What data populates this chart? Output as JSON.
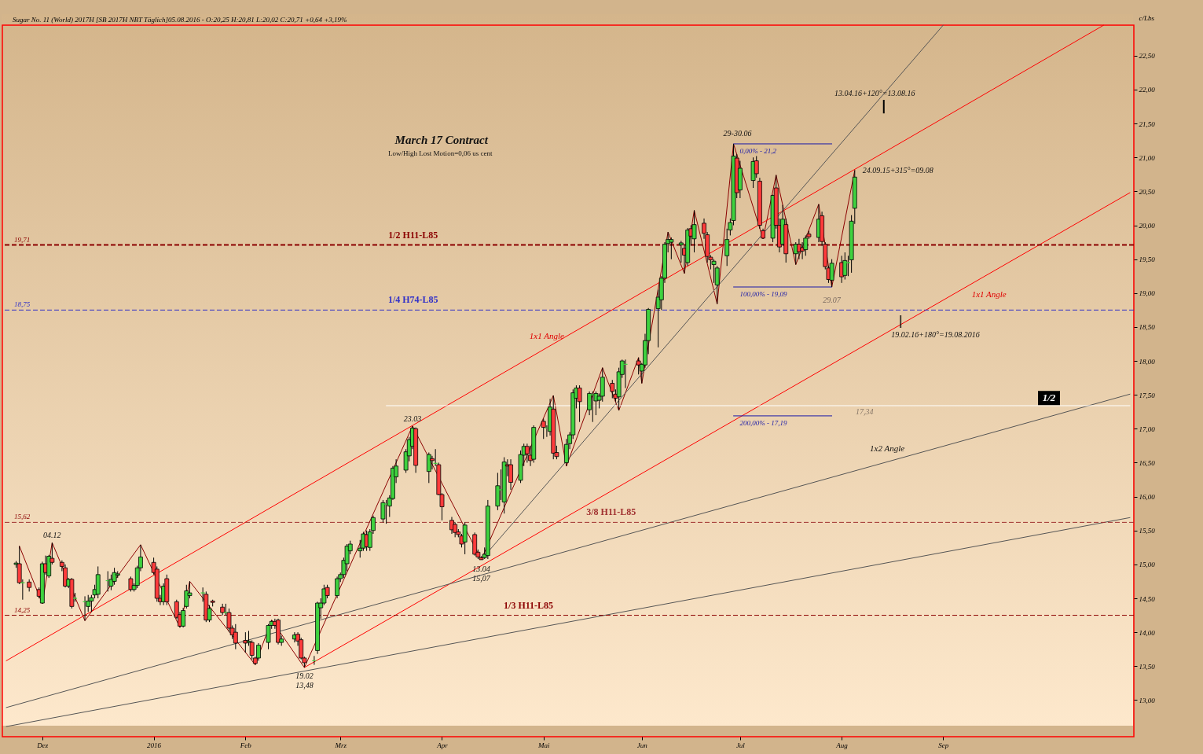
{
  "chart_data": {
    "colors": [
      "#3fd23f",
      "#ff3b3b",
      "#3fd23f",
      "#ff3b3b",
      "#ff3b3b",
      "#3fd23f",
      "#ff3b3b",
      "#3fd23f",
      "#ff3b3b",
      "#ff3b3b",
      "#ff3b3b",
      "#3fd23f",
      "#ff3b3b",
      "#3fd23f",
      "#3fd23f",
      "#3fd23f",
      "#3fd23f",
      "#3fd23f",
      "#3fd23f",
      "#3fd23f",
      "#3fd23f",
      "#3fd23f",
      "#3fd23f",
      "#ff3b3b",
      "#3fd23f",
      "#3fd23f",
      "#3fd23f",
      "#ff3b3b",
      "#ff3b3b",
      "#ff3b3b",
      "#3fd23f",
      "#ff3b3b",
      "#ff3b3b",
      "#ff3b3b",
      "#3fd23f",
      "#3fd23f",
      "#3fd23f",
      "#3fd23f",
      "#ff3b3b",
      "#3fd23f",
      "#ff3b3b",
      "#ff3b3b",
      "#3fd23f",
      "#ff3b3b",
      "#ff3b3b",
      "#ff3b3b",
      "#ff3b3b",
      "#3fd23f",
      "#ff3b3b",
      "#ff3b3b",
      "#3fd23f",
      "#3fd23f",
      "#3fd23f",
      "#ff3b3b",
      "#ff3b3b",
      "#3fd23f",
      "#3fd23f",
      "#ff3b3b",
      "#ff3b3b",
      "#ff3b3b",
      "#3fd23f",
      "#3fd23f",
      "#3fd23f",
      "#3fd23f",
      "#ff3b3b",
      "#3fd23f",
      "#3fd23f",
      "#3fd23f",
      "#3fd23f",
      "#3fd23f",
      "#3fd23f",
      "#3fd23f",
      "#ff3b3b",
      "#3fd23f",
      "#3fd23f",
      "#3fd23f",
      "#3fd23f",
      "#3fd23f",
      "#3fd23f",
      "#3fd23f",
      "#3fd23f",
      "#3fd23f",
      "#3fd23f",
      "#ff3b3b",
      "#3fd23f",
      "#ff3b3b",
      "#3fd23f",
      "#ff3b3b",
      "#ff3b3b",
      "#ff3b3b",
      "#ff3b3b",
      "#ff3b3b",
      "#ff3b3b",
      "#3fd23f",
      "#ff3b3b",
      "#ff3b3b",
      "#ff3b3b",
      "#3fd23f",
      "#3fd23f",
      "#3fd23f",
      "#3fd23f",
      "#3fd23f",
      "#ff3b3b",
      "#ff3b3b",
      "#3fd23f",
      "#3fd23f",
      "#ff3b3b",
      "#ff3b3b",
      "#3fd23f",
      "#ff3b3b",
      "#3fd23f",
      "#3fd23f",
      "#ff3b3b",
      "#ff3b3b",
      "#3fd23f",
      "#3fd23f",
      "#3fd23f",
      "#3fd23f",
      "#ff3b3b",
      "#3fd23f",
      "#3fd23f",
      "#3fd23f",
      "#3fd23f",
      "#3fd23f",
      "#ff3b3b",
      "#ff3b3b",
      "#3fd23f",
      "#3fd23f",
      "#3fd23f",
      "#ff3b3b",
      "#3fd23f",
      "#3fd23f",
      "#3fd23f",
      "#3fd23f",
      "#3fd23f",
      "#3fd23f",
      "#3fd23f",
      "#3fd23f",
      "#3fd23f",
      "#ff3b3b",
      "#3fd23f",
      "#ff3b3b",
      "#3fd23f",
      "#ff3b3b",
      "#ff3b3b",
      "#ff3b3b",
      "#3fd23f",
      "#3fd23f",
      "#3fd23f",
      "#3fd23f",
      "#3fd23f",
      "#ff3b3b",
      "#3fd23f",
      "#3fd23f",
      "#ff3b3b",
      "#ff3b3b",
      "#ff3b3b",
      "#3fd23f",
      "#ff3b3b",
      "#ff3b3b",
      "#3fd23f",
      "#ff3b3b",
      "#3fd23f",
      "#ff3b3b",
      "#ff3b3b",
      "#3fd23f",
      "#ff3b3b",
      "#3fd23f",
      "#ff3b3b",
      "#ff3b3b",
      "#ff3b3b",
      "#3fd23f",
      "#ff3b3b",
      "#3fd23f",
      "#3fd23f",
      "#3fd23f",
      "#3fd23f"
    ],
    "type": "candlestick",
    "title": "Sugar No. 11 (World) 2017H [SB 2017H NBT  Täglich]05.08.2016 - O:20,25 H:20,81 L:20,02 C:20,71 +0,64 +3,19%",
    "ylabel": "c/Lbs",
    "x": [
      "2015-11-23",
      "2015-11-24",
      "2015-11-25",
      "2015-11-27",
      "2015-11-30",
      "2015-12-01",
      "2015-12-02",
      "2015-12-03",
      "2015-12-04",
      "2015-12-07",
      "2015-12-08",
      "2015-12-09",
      "2015-12-10",
      "2015-12-11",
      "2015-12-14",
      "2015-12-15",
      "2015-12-16",
      "2015-12-17",
      "2015-12-18",
      "2015-12-21",
      "2015-12-22",
      "2015-12-23",
      "2015-12-24",
      "2015-12-28",
      "2015-12-29",
      "2015-12-30",
      "2015-12-31",
      "2016-01-04",
      "2016-01-05",
      "2016-01-06",
      "2016-01-07",
      "2016-01-08",
      "2016-01-11",
      "2016-01-12",
      "2016-01-13",
      "2016-01-14",
      "2016-01-15",
      "2016-01-19",
      "2016-01-20",
      "2016-01-21",
      "2016-01-22",
      "2016-01-25",
      "2016-01-26",
      "2016-01-27",
      "2016-01-28",
      "2016-01-29",
      "2016-02-01",
      "2016-02-02",
      "2016-02-03",
      "2016-02-04",
      "2016-02-05",
      "2016-02-08",
      "2016-02-09",
      "2016-02-10",
      "2016-02-11",
      "2016-02-12",
      "2016-02-16",
      "2016-02-17",
      "2016-02-18",
      "2016-02-19",
      "2016-02-22",
      "2016-02-23",
      "2016-02-24",
      "2016-02-25",
      "2016-02-26",
      "2016-02-29",
      "2016-03-01",
      "2016-03-02",
      "2016-03-03",
      "2016-03-04",
      "2016-03-07",
      "2016-03-08",
      "2016-03-09",
      "2016-03-10",
      "2016-03-11",
      "2016-03-14",
      "2016-03-15",
      "2016-03-16",
      "2016-03-17",
      "2016-03-18",
      "2016-03-21",
      "2016-03-22",
      "2016-03-23",
      "2016-03-24",
      "2016-03-28",
      "2016-03-29",
      "2016-03-30",
      "2016-03-31",
      "2016-04-01",
      "2016-04-04",
      "2016-04-05",
      "2016-04-06",
      "2016-04-07",
      "2016-04-08",
      "2016-04-11",
      "2016-04-12",
      "2016-04-13",
      "2016-04-14",
      "2016-04-15",
      "2016-04-18",
      "2016-04-19",
      "2016-04-20",
      "2016-04-21",
      "2016-04-22",
      "2016-04-25",
      "2016-04-26",
      "2016-04-27",
      "2016-04-28",
      "2016-04-29",
      "2016-05-02",
      "2016-05-03",
      "2016-05-04",
      "2016-05-05",
      "2016-05-06",
      "2016-05-09",
      "2016-05-10",
      "2016-05-11",
      "2016-05-12",
      "2016-05-13",
      "2016-05-16",
      "2016-05-17",
      "2016-05-18",
      "2016-05-19",
      "2016-05-20",
      "2016-05-23",
      "2016-05-24",
      "2016-05-25",
      "2016-05-26",
      "2016-05-27",
      "2016-05-31",
      "2016-06-01",
      "2016-06-02",
      "2016-06-03",
      "2016-06-06",
      "2016-06-07",
      "2016-06-08",
      "2016-06-09",
      "2016-06-10",
      "2016-06-13",
      "2016-06-14",
      "2016-06-15",
      "2016-06-16",
      "2016-06-17",
      "2016-06-20",
      "2016-06-21",
      "2016-06-22",
      "2016-06-23",
      "2016-06-24",
      "2016-06-27",
      "2016-06-28",
      "2016-06-29",
      "2016-06-30",
      "2016-07-01",
      "2016-07-05",
      "2016-07-06",
      "2016-07-07",
      "2016-07-08",
      "2016-07-11",
      "2016-07-12",
      "2016-07-13",
      "2016-07-14",
      "2016-07-15",
      "2016-07-18",
      "2016-07-19",
      "2016-07-20",
      "2016-07-21",
      "2016-07-22",
      "2016-07-25",
      "2016-07-26",
      "2016-07-27",
      "2016-07-28",
      "2016-07-29",
      "2016-08-01",
      "2016-08-02",
      "2016-08-03",
      "2016-08-04",
      "2016-08-05"
    ],
    "ohlc": [
      [
        15.0,
        15.05,
        14.95,
        15.02
      ],
      [
        15.01,
        15.27,
        14.71,
        14.73
      ],
      [
        14.73,
        14.78,
        14.48,
        14.73
      ],
      [
        14.74,
        14.78,
        14.6,
        14.66
      ],
      [
        14.63,
        14.66,
        14.5,
        14.53
      ],
      [
        14.43,
        15.04,
        14.42,
        15.01
      ],
      [
        15.01,
        15.13,
        14.85,
        14.88
      ],
      [
        14.83,
        15.14,
        14.8,
        15.12
      ],
      [
        15.09,
        15.32,
        15.0,
        15.03
      ],
      [
        15.03,
        15.06,
        14.9,
        14.97
      ],
      [
        14.95,
        15.0,
        14.66,
        14.68
      ],
      [
        14.68,
        14.8,
        14.65,
        14.78
      ],
      [
        14.78,
        14.8,
        14.35,
        14.38
      ],
      [
        14.5,
        14.58,
        14.45,
        14.5
      ],
      [
        14.45,
        14.53,
        14.17,
        14.45
      ],
      [
        14.38,
        14.55,
        14.3,
        14.46
      ],
      [
        14.46,
        14.55,
        14.3,
        14.51
      ],
      [
        14.55,
        14.7,
        14.5,
        14.63
      ],
      [
        14.56,
        14.97,
        14.5,
        14.85
      ],
      [
        14.76,
        14.9,
        14.6,
        14.76
      ],
      [
        14.68,
        14.85,
        14.62,
        14.78
      ],
      [
        14.75,
        14.95,
        14.7,
        14.88
      ],
      [
        14.84,
        14.9,
        14.8,
        14.86
      ],
      [
        14.79,
        14.82,
        14.6,
        14.63
      ],
      [
        14.63,
        14.72,
        14.6,
        14.69
      ],
      [
        14.69,
        14.98,
        14.65,
        14.95
      ],
      [
        14.95,
        15.29,
        14.9,
        15.11
      ],
      [
        15.03,
        15.1,
        14.85,
        14.88
      ],
      [
        14.93,
        14.97,
        14.45,
        14.5
      ],
      [
        14.5,
        14.55,
        14.4,
        14.45
      ],
      [
        14.45,
        14.72,
        14.4,
        14.68
      ],
      [
        14.79,
        14.85,
        14.4,
        14.45
      ],
      [
        14.45,
        14.48,
        14.2,
        14.22
      ],
      [
        14.26,
        14.3,
        14.07,
        14.09
      ],
      [
        14.09,
        14.36,
        14.07,
        14.32
      ],
      [
        14.38,
        14.7,
        14.35,
        14.61
      ],
      [
        14.54,
        14.75,
        14.5,
        14.58
      ],
      [
        14.58,
        14.66,
        14.45,
        14.58
      ],
      [
        14.56,
        14.6,
        14.15,
        14.18
      ],
      [
        14.18,
        14.4,
        14.15,
        14.35
      ],
      [
        14.46,
        14.48,
        14.38,
        14.44
      ],
      [
        14.37,
        14.42,
        14.25,
        14.29
      ],
      [
        14.29,
        14.42,
        14.25,
        14.29
      ],
      [
        14.29,
        14.35,
        14.0,
        14.06
      ],
      [
        14.06,
        14.1,
        13.9,
        13.96
      ],
      [
        14.0,
        14.12,
        13.75,
        13.84
      ],
      [
        13.88,
        14.0,
        13.7,
        13.84
      ],
      [
        13.85,
        14.02,
        13.8,
        13.87
      ],
      [
        13.85,
        13.88,
        13.6,
        13.66
      ],
      [
        13.62,
        13.64,
        13.52,
        13.54
      ],
      [
        13.62,
        13.84,
        13.58,
        13.81
      ],
      [
        13.85,
        14.12,
        13.75,
        14.1
      ],
      [
        14.1,
        14.18,
        14.05,
        14.16
      ],
      [
        14.16,
        14.2,
        14.05,
        14.1
      ],
      [
        14.18,
        14.2,
        13.82,
        13.85
      ],
      [
        13.85,
        13.95,
        13.8,
        13.9
      ],
      [
        13.9,
        14.0,
        13.85,
        13.96
      ],
      [
        13.97,
        14.0,
        13.8,
        13.87
      ],
      [
        13.89,
        13.92,
        13.6,
        13.62
      ],
      [
        13.62,
        13.64,
        13.48,
        13.55
      ],
      [
        13.58,
        13.65,
        13.52,
        13.58
      ],
      [
        13.73,
        14.45,
        13.68,
        14.43
      ],
      [
        14.36,
        14.5,
        14.2,
        14.43
      ],
      [
        14.43,
        14.7,
        14.4,
        14.64
      ],
      [
        14.66,
        14.7,
        14.5,
        14.54
      ],
      [
        14.54,
        14.82,
        14.5,
        14.79
      ],
      [
        14.79,
        14.88,
        14.74,
        14.85
      ],
      [
        14.85,
        15.1,
        14.8,
        15.06
      ],
      [
        15.01,
        15.3,
        14.9,
        15.27
      ],
      [
        15.2,
        15.35,
        15.15,
        15.3
      ],
      [
        15.2,
        15.36,
        15.1,
        15.24
      ],
      [
        15.24,
        15.48,
        15.2,
        15.45
      ],
      [
        15.44,
        15.5,
        15.2,
        15.26
      ],
      [
        15.25,
        15.52,
        15.2,
        15.48
      ],
      [
        15.5,
        15.72,
        15.45,
        15.69
      ],
      [
        15.67,
        15.95,
        15.62,
        15.91
      ],
      [
        15.89,
        15.95,
        15.6,
        15.89
      ],
      [
        15.86,
        16.02,
        15.7,
        15.98
      ],
      [
        15.97,
        16.45,
        15.95,
        16.42
      ],
      [
        16.29,
        16.55,
        16.2,
        16.45
      ],
      [
        16.39,
        16.7,
        16.35,
        16.66
      ],
      [
        16.6,
        16.88,
        16.52,
        16.84
      ],
      [
        16.74,
        17.04,
        16.7,
        17.01
      ],
      [
        17.0,
        17.02,
        16.35,
        16.46
      ],
      [
        16.37,
        16.65,
        16.2,
        16.62
      ],
      [
        16.56,
        16.6,
        16.4,
        16.53
      ],
      [
        16.49,
        16.7,
        16.45,
        16.49
      ],
      [
        16.47,
        16.5,
        16.02,
        16.03
      ],
      [
        16.03,
        16.05,
        15.65,
        15.85
      ],
      [
        15.65,
        15.7,
        15.45,
        15.51
      ],
      [
        15.59,
        15.62,
        15.4,
        15.47
      ],
      [
        15.48,
        15.52,
        15.4,
        15.44
      ],
      [
        15.42,
        15.45,
        15.25,
        15.3
      ],
      [
        15.33,
        15.62,
        15.15,
        15.58
      ],
      [
        15.44,
        15.47,
        15.13,
        15.15
      ],
      [
        15.18,
        15.22,
        15.08,
        15.11
      ],
      [
        15.1,
        15.12,
        15.07,
        15.07
      ],
      [
        15.1,
        15.25,
        15.08,
        15.15
      ],
      [
        15.13,
        15.95,
        15.08,
        15.86
      ],
      [
        15.86,
        16.35,
        15.8,
        16.16
      ],
      [
        16.1,
        16.4,
        15.95,
        16.1
      ],
      [
        15.92,
        16.58,
        15.75,
        16.51
      ],
      [
        16.47,
        16.55,
        16.3,
        16.45
      ],
      [
        16.47,
        16.55,
        16.1,
        16.21
      ],
      [
        16.24,
        16.68,
        16.2,
        16.62
      ],
      [
        16.61,
        16.78,
        16.45,
        16.74
      ],
      [
        16.74,
        16.78,
        16.5,
        16.63
      ],
      [
        16.61,
        16.75,
        16.45,
        16.53
      ],
      [
        16.55,
        17.05,
        16.5,
        17.02
      ],
      [
        17.11,
        17.15,
        16.85,
        17.02
      ],
      [
        17.01,
        17.05,
        16.88,
        17.01
      ],
      [
        16.96,
        17.44,
        16.9,
        17.32
      ],
      [
        17.29,
        17.49,
        16.55,
        16.64
      ],
      [
        16.65,
        16.75,
        16.55,
        16.59
      ],
      [
        16.5,
        16.85,
        16.45,
        16.77
      ],
      [
        16.78,
        16.95,
        16.7,
        16.91
      ],
      [
        16.91,
        17.58,
        16.85,
        17.53
      ],
      [
        17.45,
        17.64,
        17.3,
        17.6
      ],
      [
        17.6,
        17.64,
        17.1,
        17.4
      ],
      [
        17.28,
        17.55,
        17.2,
        17.52
      ],
      [
        17.5,
        17.55,
        17.1,
        17.5
      ],
      [
        17.41,
        17.55,
        17.2,
        17.52
      ],
      [
        17.42,
        17.52,
        17.3,
        17.48
      ],
      [
        17.48,
        17.9,
        17.4,
        17.76
      ],
      [
        17.67,
        17.72,
        17.45,
        17.55
      ],
      [
        17.51,
        17.58,
        17.4,
        17.45
      ],
      [
        17.47,
        17.9,
        17.27,
        17.84
      ],
      [
        17.8,
        18.02,
        17.75,
        18.0
      ],
      [
        17.95,
        18.02,
        17.6,
        17.95
      ],
      [
        18.0,
        18.05,
        17.8,
        17.94
      ],
      [
        17.85,
        17.97,
        17.67,
        17.95
      ],
      [
        17.94,
        18.4,
        17.9,
        18.3
      ],
      [
        18.3,
        18.78,
        18.1,
        18.76
      ],
      [
        18.77,
        19.05,
        18.2,
        18.94
      ],
      [
        18.9,
        19.25,
        18.75,
        19.22
      ],
      [
        19.22,
        19.75,
        19.15,
        19.72
      ],
      [
        19.73,
        19.9,
        19.6,
        19.79
      ],
      [
        19.75,
        19.82,
        19.5,
        19.79
      ],
      [
        19.71,
        19.77,
        19.45,
        19.74
      ],
      [
        19.66,
        19.7,
        19.29,
        19.56
      ],
      [
        19.45,
        19.96,
        19.4,
        19.93
      ],
      [
        19.95,
        20.0,
        19.7,
        19.84
      ],
      [
        19.8,
        20.22,
        19.6,
        20.01
      ],
      [
        20.03,
        20.1,
        19.8,
        19.88
      ],
      [
        19.86,
        19.9,
        19.45,
        19.54
      ],
      [
        19.53,
        19.56,
        19.35,
        19.49
      ],
      [
        19.42,
        19.5,
        19.15,
        19.47
      ],
      [
        19.12,
        19.4,
        18.84,
        19.37
      ],
      [
        19.55,
        19.95,
        19.4,
        19.79
      ],
      [
        19.93,
        20.1,
        19.85,
        20.04
      ],
      [
        20.07,
        21.2,
        20.0,
        21.02
      ],
      [
        20.99,
        21.05,
        20.4,
        20.48
      ],
      [
        20.52,
        20.95,
        20.4,
        20.84
      ],
      [
        20.66,
        21.0,
        20.55,
        20.94
      ],
      [
        20.95,
        21.02,
        20.7,
        20.76
      ],
      [
        20.65,
        20.7,
        19.95,
        20.0
      ],
      [
        19.92,
        19.95,
        19.8,
        19.81
      ],
      [
        19.81,
        20.45,
        19.75,
        20.44
      ],
      [
        20.55,
        20.74,
        19.95,
        20.0
      ],
      [
        20.0,
        20.1,
        19.6,
        19.68
      ],
      [
        19.72,
        20.3,
        19.7,
        20.09
      ],
      [
        20.01,
        20.1,
        19.45,
        19.58
      ],
      [
        19.58,
        19.75,
        19.42,
        19.72
      ],
      [
        19.72,
        19.8,
        19.5,
        19.61
      ],
      [
        19.67,
        19.75,
        19.5,
        19.62
      ],
      [
        19.64,
        19.85,
        19.55,
        19.81
      ],
      [
        19.87,
        19.92,
        19.8,
        19.83
      ],
      [
        19.82,
        20.31,
        19.75,
        20.09
      ],
      [
        20.14,
        20.2,
        19.7,
        19.76
      ],
      [
        19.72,
        19.75,
        19.35,
        19.39
      ],
      [
        19.37,
        19.4,
        19.15,
        19.2
      ],
      [
        19.19,
        19.5,
        19.09,
        19.44
      ],
      [
        19.45,
        19.55,
        19.15,
        19.24
      ],
      [
        19.26,
        19.6,
        19.2,
        19.48
      ],
      [
        19.45,
        19.55,
        19.25,
        19.45
      ],
      [
        19.49,
        20.15,
        19.3,
        20.06
      ],
      [
        20.25,
        20.81,
        20.02,
        20.71
      ]
    ],
    "series": [
      {
        "type": "line",
        "color": "#8b0000",
        "x": [
          "2015-11-24",
          "2015-12-01",
          "2015-12-04",
          "2015-12-14",
          "2015-12-31",
          "2016-01-12",
          "2016-01-15",
          "2016-02-04",
          "2016-02-09",
          "2016-02-19",
          "2016-03-23",
          "2016-04-13",
          "2016-05-05",
          "2016-05-09",
          "2016-05-20",
          "2016-05-25",
          "2016-05-31",
          "2016-06-01",
          "2016-06-09",
          "2016-06-14",
          "2016-06-17",
          "2016-06-24",
          "2016-06-29",
          "2016-07-08",
          "2016-07-12",
          "2016-07-18",
          "2016-07-25",
          "2016-07-29",
          "2016-08-05"
        ],
        "values": [
          15.27,
          14.42,
          15.32,
          14.17,
          15.29,
          14.07,
          14.75,
          13.52,
          14.18,
          13.48,
          17.04,
          15.07,
          17.49,
          16.45,
          17.9,
          17.27,
          18.05,
          17.67,
          19.9,
          19.29,
          20.22,
          18.84,
          21.2,
          19.8,
          20.74,
          19.42,
          20.31,
          19.09,
          20.81
        ]
      },
      {
        "type": "line",
        "color": "#ff0000",
        "x": [
          "2015-11-20",
          "2016-10-20"
        ],
        "values": [
          13.58,
          22.95
        ]
      },
      {
        "type": "line",
        "color": "#ff0000",
        "x": [
          "2016-02-19",
          "2016-10-28"
        ],
        "values": [
          13.48,
          20.48
        ]
      },
      {
        "type": "line",
        "color": "#555555",
        "x": [
          "2016-04-13",
          "2016-09-01"
        ],
        "values": [
          15.07,
          22.95
        ]
      },
      {
        "type": "line",
        "color": "#555555",
        "x": [
          "2015-11-20",
          "2016-10-28"
        ],
        "values": [
          12.89,
          17.51
        ]
      },
      {
        "type": "line",
        "color": "#555555",
        "x": [
          "2015-11-20",
          "2016-10-28"
        ],
        "values": [
          12.61,
          15.69
        ]
      },
      {
        "type": "line",
        "color": "#ffffff",
        "x": [
          "2016-03-15",
          "2016-10-28"
        ],
        "values": [
          17.34,
          17.34
        ]
      },
      {
        "type": "line",
        "name": "0,00% - 21,2",
        "color": "#1a1aa8",
        "x": [
          "2016-06-29",
          "2016-07-29"
        ],
        "values": [
          21.2,
          21.2
        ]
      },
      {
        "type": "line",
        "name": "100,00% - 19,09",
        "color": "#1a1aa8",
        "x": [
          "2016-06-29",
          "2016-07-29"
        ],
        "values": [
          19.09,
          19.09
        ]
      },
      {
        "type": "line",
        "name": "200,00% - 17,19",
        "color": "#1a1aa8",
        "x": [
          "2016-06-29",
          "2016-07-29"
        ],
        "values": [
          17.19,
          17.19
        ]
      }
    ],
    "ref_lines": [
      {
        "axis": "y",
        "value": 19.71,
        "label": "1/2 H11-L85",
        "color": "#8b0000",
        "line_style": "dashed"
      },
      {
        "axis": "y",
        "value": 18.75,
        "label": "1/4 H74-L85",
        "color": "#2f2fc8",
        "line_style": "dashed"
      },
      {
        "axis": "y",
        "value": 15.62,
        "label": "3/8 H11-L85",
        "color": "#a0302f",
        "line_style": "dashed"
      },
      {
        "axis": "y",
        "value": 14.25,
        "label": "1/3 H11-L85",
        "color": "#8b0000",
        "line_style": "dashed"
      }
    ],
    "annotations": [
      "March 17 Contract",
      "Low/High Lost Motion=0,06 us cent",
      "1/2",
      {
        "text": "04.12",
        "x": "2015-12-04",
        "y": 15.32
      },
      {
        "text": "19.02\n13,48",
        "x": "2016-02-19",
        "y": 13.48
      },
      {
        "text": "23.03",
        "x": "2016-03-23",
        "y": 17.04
      },
      {
        "text": "13.04\n15,07",
        "x": "2016-04-13",
        "y": 15.07
      },
      {
        "text": "29-30.06",
        "x": "2016-06-29",
        "y": 21.2
      },
      {
        "text": "29.07",
        "x": "2016-07-29",
        "y": 19.09
      },
      {
        "text": "24.09.15+315°=09.08",
        "x": "2016-08-05",
        "y": 20.81
      },
      "13.04.16+120°=13.08.16",
      {
        "text": "19.02.16+180°=19.08.2016",
        "x": "2016-08-19",
        "y": 18.58
      },
      {
        "text": "1x1 Angle",
        "x": "2016-05-03",
        "y": 18.25
      },
      "1x1 Angle",
      "1x2 Angle",
      {
        "text": "17,34",
        "x": "2016-08-08",
        "y": 17.34
      },
      {
        "text": "19,71",
        "x": "2015-11-20",
        "y": 19.71
      },
      {
        "text": "18,75",
        "x": "2015-11-20",
        "y": 18.75
      },
      {
        "text": "15,62",
        "x": "2015-11-20",
        "y": 15.62
      },
      {
        "text": "14,25",
        "x": "2015-11-20",
        "y": 14.25
      }
    ],
    "xlim": [
      "2015-11-20",
      "2016-10-28"
    ],
    "xticks": [
      {
        "value": "2015-12-01",
        "label": "Dez"
      },
      {
        "value": "2016-01-04",
        "label": "2016"
      },
      {
        "value": "2016-02-01",
        "label": "Feb"
      },
      {
        "value": "2016-03-01",
        "label": "Mrz"
      },
      {
        "value": "2016-04-01",
        "label": "Apr"
      },
      {
        "value": "2016-05-02",
        "label": "Mai"
      },
      {
        "value": "2016-06-01",
        "label": "Jun"
      },
      {
        "value": "2016-07-01",
        "label": "Jul"
      },
      {
        "value": "2016-08-01",
        "label": "Aug"
      },
      {
        "value": "2016-09-01",
        "label": "Sep"
      }
    ],
    "ylim": [
      12.46,
      22.95
    ],
    "yticks": [
      {
        "value": 13,
        "label": "13,00"
      },
      {
        "value": 13.5,
        "label": "13,50"
      },
      {
        "value": 14,
        "label": "14,00"
      },
      {
        "value": 14.5,
        "label": "14,50"
      },
      {
        "value": 15,
        "label": "15,00"
      },
      {
        "value": 15.5,
        "label": "15,50"
      },
      {
        "value": 16,
        "label": "16,00"
      },
      {
        "value": 16.5,
        "label": "16,50"
      },
      {
        "value": 17,
        "label": "17,00"
      },
      {
        "value": 17.5,
        "label": "17,50"
      },
      {
        "value": 18,
        "label": "18,00"
      },
      {
        "value": 18.5,
        "label": "18,50"
      },
      {
        "value": 19,
        "label": "19,00"
      },
      {
        "value": 19.5,
        "label": "19,50"
      },
      {
        "value": 20,
        "label": "20,00"
      },
      {
        "value": 20.5,
        "label": "20,50"
      },
      {
        "value": 21,
        "label": "21,00"
      },
      {
        "value": 21.5,
        "label": "21,50"
      },
      {
        "value": 22,
        "label": "22,00"
      },
      {
        "value": 22.5,
        "label": "22,50"
      }
    ]
  }
}
